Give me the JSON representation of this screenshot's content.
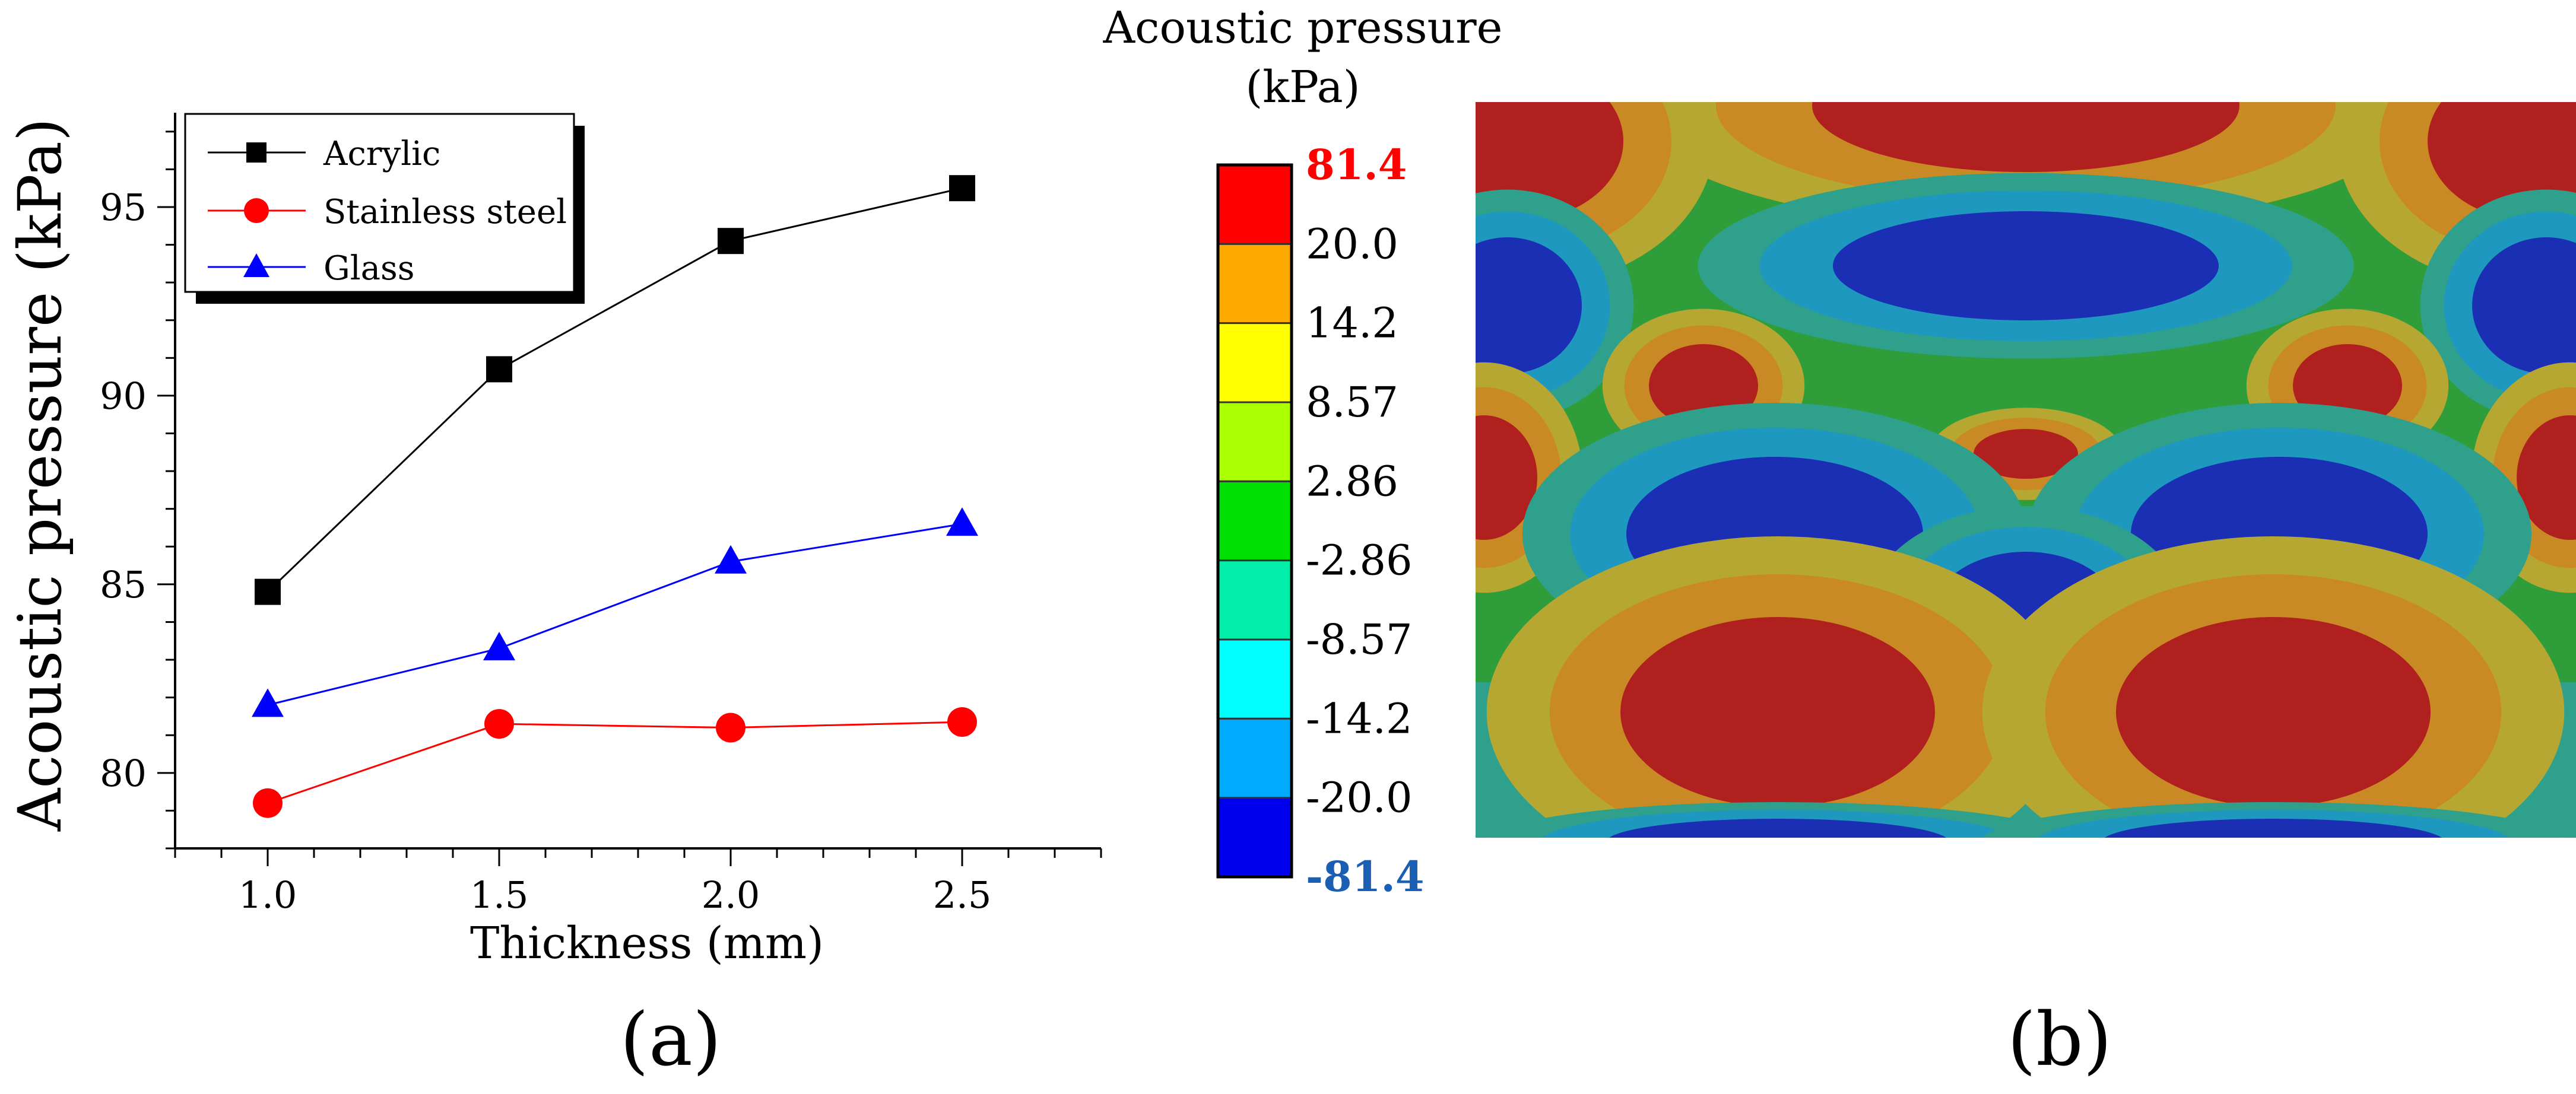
{
  "panel_labels": {
    "a": "(a)",
    "b": "(b)"
  },
  "chart_data": [
    {
      "type": "line",
      "title": "",
      "xlabel": "Thickness (mm)",
      "ylabel": "Acoustic pressure (kPa)",
      "xlim": [
        0.8,
        2.8
      ],
      "ylim": [
        78,
        97.5
      ],
      "x": [
        1.0,
        1.5,
        2.0,
        2.5
      ],
      "xticks": [
        "1.0",
        "1.5",
        "2.0",
        "2.5"
      ],
      "yticks": [
        "80",
        "85",
        "90",
        "95"
      ],
      "legend_position": "top-left",
      "series": [
        {
          "name": "Acrylic",
          "values": [
            84.8,
            90.7,
            94.1,
            95.5
          ],
          "color": "#000000",
          "marker": "square"
        },
        {
          "name": "Stainless steel",
          "values": [
            79.2,
            81.3,
            81.2,
            81.35
          ],
          "color": "#ff0000",
          "marker": "circle"
        },
        {
          "name": "Glass",
          "values": [
            81.8,
            83.3,
            85.6,
            86.6
          ],
          "color": "#0000ff",
          "marker": "triangle"
        }
      ]
    },
    {
      "type": "heatmap",
      "title": "Acoustic pressure",
      "unit": "(kPa)",
      "colorbar": {
        "labels": [
          "81.4",
          "20.0",
          "14.2",
          "8.57",
          "2.86",
          "-2.86",
          "-8.57",
          "-14.2",
          "-20.0",
          "-81.4"
        ],
        "max_label_color": "#ff0000",
        "min_label_color": "#1a5fb4",
        "colors": [
          "#ff0000",
          "#ffaa00",
          "#ffff00",
          "#aaff00",
          "#00e000",
          "#00eeaa",
          "#00ffff",
          "#00aaff",
          "#0000ee"
        ]
      },
      "levels": {
        "red": "#b0201e",
        "orange": "#c98a25",
        "olive": "#b6a732",
        "green": "#2f9e3a",
        "teal": "#2fa08c",
        "cyan": "#1f98bf",
        "blue": "#1a2fb3"
      }
    }
  ]
}
